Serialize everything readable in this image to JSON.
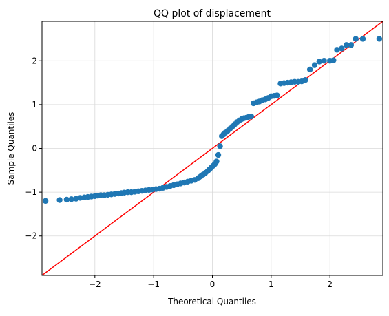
{
  "chart_data": {
    "type": "scatter",
    "title": "QQ plot of displacement",
    "xlabel": "Theoretical Quantiles",
    "ylabel": "Sample Quantiles",
    "xlim": [
      -2.9,
      2.9
    ],
    "ylim": [
      -2.9,
      2.9
    ],
    "xticks": [
      -2,
      -1,
      0,
      1,
      2
    ],
    "yticks": [
      -2,
      -1,
      0,
      1,
      2
    ],
    "xtick_labels": [
      "−2",
      "−1",
      "0",
      "1",
      "2"
    ],
    "ytick_labels": [
      "−2",
      "−1",
      "0",
      "1",
      "2"
    ],
    "grid": true,
    "colors": {
      "points": "#1f77b4",
      "reference_line": "#ff0000",
      "grid": "#d9d9d9"
    },
    "reference_line": {
      "x": [
        -2.9,
        2.9
      ],
      "y": [
        -2.9,
        2.9
      ]
    },
    "points": {
      "x": [
        -2.84,
        -2.6,
        -2.48,
        -2.4,
        -2.32,
        -2.25,
        -2.18,
        -2.12,
        -2.06,
        -2.0,
        -1.95,
        -1.9,
        -1.84,
        -1.78,
        -1.72,
        -1.66,
        -1.6,
        -1.55,
        -1.5,
        -1.44,
        -1.38,
        -1.32,
        -1.26,
        -1.2,
        -1.14,
        -1.08,
        -1.02,
        -0.96,
        -0.9,
        -0.84,
        -0.78,
        -0.72,
        -0.66,
        -0.6,
        -0.54,
        -0.48,
        -0.42,
        -0.36,
        -0.3,
        -0.24,
        -0.2,
        -0.16,
        -0.12,
        -0.08,
        -0.05,
        -0.02,
        0.01,
        0.04,
        0.07,
        0.1,
        0.13,
        0.16,
        0.19,
        0.22,
        0.26,
        0.3,
        0.34,
        0.38,
        0.42,
        0.46,
        0.5,
        0.54,
        0.58,
        0.62,
        0.66,
        0.7,
        0.75,
        0.8,
        0.85,
        0.9,
        0.95,
        1.0,
        1.05,
        1.1,
        1.16,
        1.22,
        1.28,
        1.34,
        1.4,
        1.46,
        1.52,
        1.58,
        1.66,
        1.74,
        1.82,
        1.9,
        2.0,
        2.06,
        2.12,
        2.2,
        2.28,
        2.36,
        2.44,
        2.56,
        2.84
      ],
      "y": [
        -1.2,
        -1.18,
        -1.17,
        -1.16,
        -1.15,
        -1.13,
        -1.12,
        -1.11,
        -1.1,
        -1.09,
        -1.08,
        -1.07,
        -1.07,
        -1.06,
        -1.05,
        -1.04,
        -1.03,
        -1.02,
        -1.01,
        -1.0,
        -1.0,
        -0.99,
        -0.98,
        -0.97,
        -0.96,
        -0.95,
        -0.94,
        -0.93,
        -0.92,
        -0.9,
        -0.88,
        -0.86,
        -0.84,
        -0.82,
        -0.8,
        -0.78,
        -0.76,
        -0.74,
        -0.72,
        -0.68,
        -0.64,
        -0.6,
        -0.56,
        -0.52,
        -0.48,
        -0.44,
        -0.4,
        -0.36,
        -0.3,
        -0.15,
        0.05,
        0.28,
        0.32,
        0.36,
        0.4,
        0.45,
        0.5,
        0.55,
        0.6,
        0.64,
        0.67,
        0.69,
        0.7,
        0.72,
        0.73,
        1.03,
        1.05,
        1.07,
        1.1,
        1.12,
        1.15,
        1.19,
        1.2,
        1.21,
        1.48,
        1.49,
        1.5,
        1.51,
        1.52,
        1.52,
        1.53,
        1.56,
        1.8,
        1.9,
        1.98,
        2.0,
        2.0,
        2.01,
        2.25,
        2.28,
        2.36,
        2.36,
        2.5,
        2.5,
        2.5
      ]
    }
  }
}
